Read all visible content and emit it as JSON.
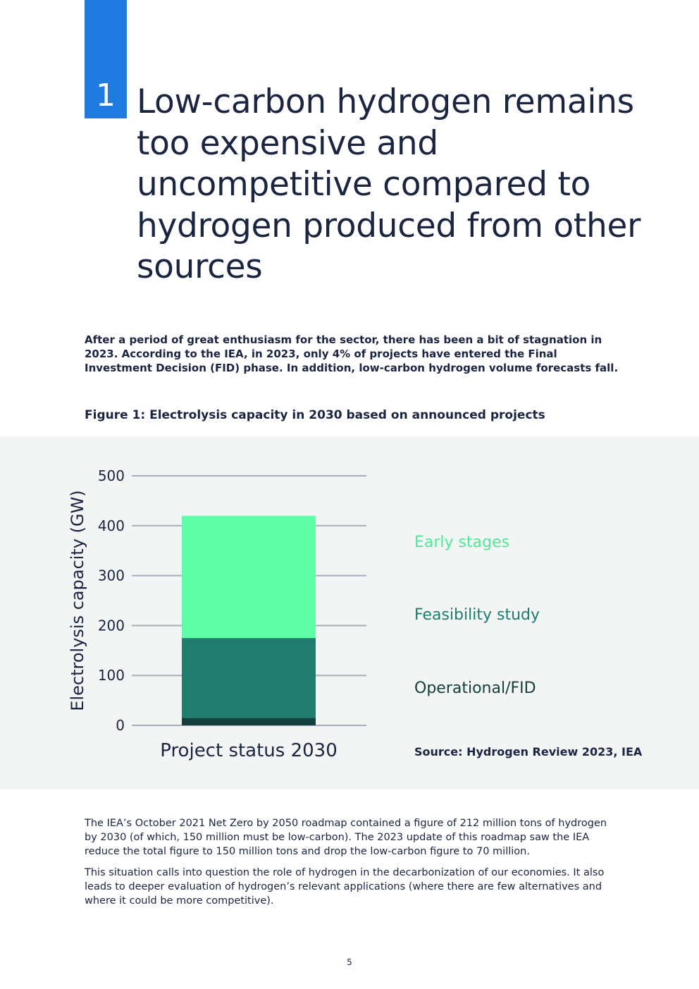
{
  "section": {
    "number": "1",
    "title": "Low-carbon hydrogen remains too expensive and uncompetitive compared to hydrogen produced from other sources"
  },
  "intro": "After a period of great enthusiasm for the sector, there has been a bit of stagnation in 2023. According to the IEA, in 2023, only 4% of projects have entered the Final Investment Decision (FID) phase. In addition, low-carbon hydrogen volume forecasts fall.",
  "figure": {
    "caption": "Figure 1: Electrolysis capacity in 2030 based on announced projects",
    "source": "Source: Hydrogen Review 2023, IEA"
  },
  "chart_data": {
    "type": "bar",
    "stacked": true,
    "categories": [
      "Project status 2030"
    ],
    "series": [
      {
        "name": "Operational/FID",
        "values": [
          15
        ],
        "color": "#13403c"
      },
      {
        "name": "Feasibility study",
        "values": [
          160
        ],
        "color": "#1f7d6d"
      },
      {
        "name": "Early stages",
        "values": [
          245
        ],
        "color": "#5dffa7"
      }
    ],
    "xlabel": "Project status 2030",
    "ylabel": "Electrolysis capacity (GW)",
    "ylim": [
      0,
      500
    ],
    "yticks": [
      0,
      100,
      200,
      300,
      400,
      500
    ],
    "grid": true,
    "legend_placement": "right"
  },
  "body": [
    "The IEA’s October 2021 Net Zero by 2050 roadmap contained a figure of 212 million tons of hydrogen by 2030 (of which, 150 million must be low-carbon). The 2023 update of this roadmap saw the IEA reduce the total figure to 150 million tons and drop the low-carbon figure to 70 million.",
    "This situation calls into question the role of hydrogen in the decarbonization of our economies. It also leads to deeper evaluation of hydrogen’s relevant applications (where there are few alternatives and where it could be more competitive)."
  ],
  "page_number": "5"
}
